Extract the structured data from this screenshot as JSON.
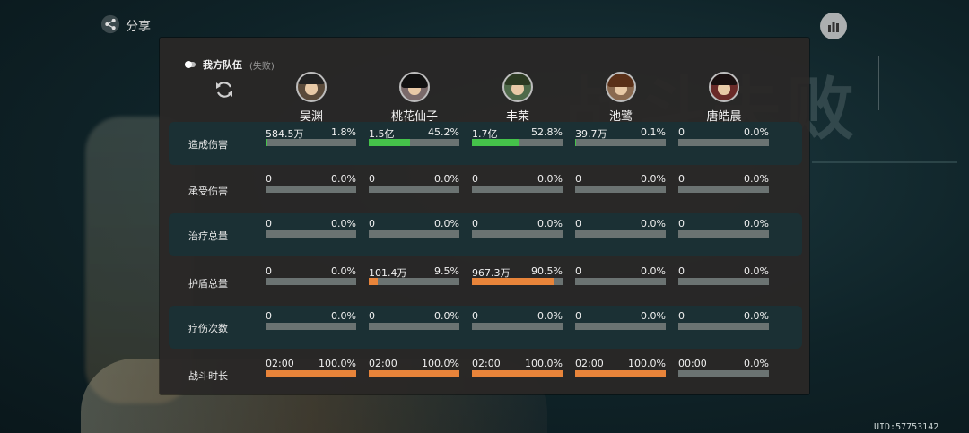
{
  "top": {
    "share_label": "分享",
    "uid": "UID:57753142"
  },
  "team": {
    "name": "我方队伍",
    "result": "(失败)"
  },
  "background_text": "战斗失败",
  "heroes": [
    {
      "name": "吴渊"
    },
    {
      "name": "桃花仙子"
    },
    {
      "name": "丰荣"
    },
    {
      "name": "池鹭"
    },
    {
      "name": "唐皓晨"
    }
  ],
  "colors": {
    "damage_bar": "#45c24a",
    "other_bar": "#e8843a",
    "empty_bar": "#6b7372"
  },
  "stats": [
    {
      "label": "造成伤害",
      "cells": [
        {
          "value": "584.5万",
          "pct": "1.8%"
        },
        {
          "value": "1.5亿",
          "pct": "45.2%"
        },
        {
          "value": "1.7亿",
          "pct": "52.8%"
        },
        {
          "value": "39.7万",
          "pct": "0.1%"
        },
        {
          "value": "0",
          "pct": "0.0%"
        }
      ]
    },
    {
      "label": "承受伤害",
      "cells": [
        {
          "value": "0",
          "pct": "0.0%"
        },
        {
          "value": "0",
          "pct": "0.0%"
        },
        {
          "value": "0",
          "pct": "0.0%"
        },
        {
          "value": "0",
          "pct": "0.0%"
        },
        {
          "value": "0",
          "pct": "0.0%"
        }
      ]
    },
    {
      "label": "治疗总量",
      "cells": [
        {
          "value": "0",
          "pct": "0.0%"
        },
        {
          "value": "0",
          "pct": "0.0%"
        },
        {
          "value": "0",
          "pct": "0.0%"
        },
        {
          "value": "0",
          "pct": "0.0%"
        },
        {
          "value": "0",
          "pct": "0.0%"
        }
      ]
    },
    {
      "label": "护盾总量",
      "cells": [
        {
          "value": "0",
          "pct": "0.0%"
        },
        {
          "value": "101.4万",
          "pct": "9.5%"
        },
        {
          "value": "967.3万",
          "pct": "90.5%"
        },
        {
          "value": "0",
          "pct": "0.0%"
        },
        {
          "value": "0",
          "pct": "0.0%"
        }
      ]
    },
    {
      "label": "疗伤次数",
      "cells": [
        {
          "value": "0",
          "pct": "0.0%"
        },
        {
          "value": "0",
          "pct": "0.0%"
        },
        {
          "value": "0",
          "pct": "0.0%"
        },
        {
          "value": "0",
          "pct": "0.0%"
        },
        {
          "value": "0",
          "pct": "0.0%"
        }
      ]
    },
    {
      "label": "战斗时长",
      "cells": [
        {
          "value": "02:00",
          "pct": "100.0%"
        },
        {
          "value": "02:00",
          "pct": "100.0%"
        },
        {
          "value": "02:00",
          "pct": "100.0%"
        },
        {
          "value": "02:00",
          "pct": "100.0%"
        },
        {
          "value": "00:00",
          "pct": "0.0%"
        }
      ]
    }
  ]
}
